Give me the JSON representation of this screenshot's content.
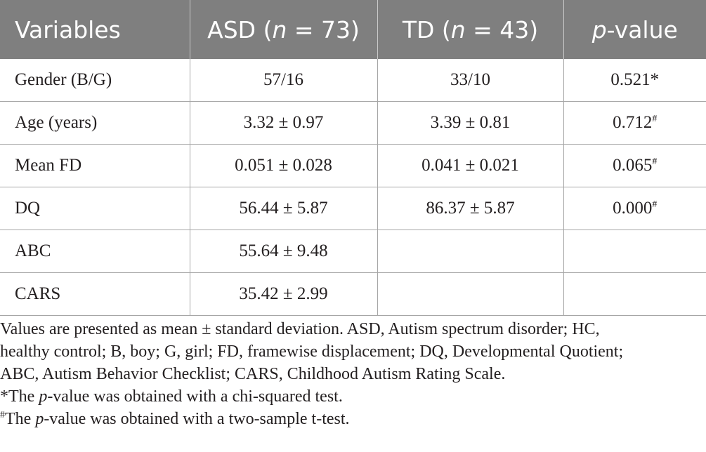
{
  "table": {
    "headers": [
      {
        "text": "Variables"
      },
      {
        "pre": "ASD (",
        "italic": "n",
        "post": " = 73)"
      },
      {
        "pre": "TD (",
        "italic": "n",
        "post": " = 43)"
      },
      {
        "pre": "",
        "italic": "p",
        "post": "-value"
      }
    ],
    "rows": [
      {
        "variable": "Gender (B/G)",
        "asd": "57/16",
        "td": "33/10",
        "p": "0.521",
        "mark": "*"
      },
      {
        "variable": "Age (years)",
        "asd": "3.32 ± 0.97",
        "td": "3.39 ± 0.81",
        "p": "0.712",
        "mark": "#"
      },
      {
        "variable": "Mean FD",
        "asd": "0.051 ± 0.028",
        "td": "0.041 ± 0.021",
        "p": "0.065",
        "mark": "#"
      },
      {
        "variable": "DQ",
        "asd": "56.44 ± 5.87",
        "td": "86.37 ± 5.87",
        "p": "0.000",
        "mark": "#"
      },
      {
        "variable": "ABC",
        "asd": "55.64 ± 9.48",
        "td": "",
        "p": "",
        "mark": ""
      },
      {
        "variable": "CARS",
        "asd": "35.42 ± 2.99",
        "td": "",
        "p": "",
        "mark": ""
      }
    ]
  },
  "notes": {
    "abbreviations_line1": "Values are presented as mean ± standard deviation. ASD, Autism spectrum disorder; HC,",
    "abbreviations_line2": "healthy control; B, boy; G, girl; FD, framewise displacement; DQ, Developmental Quotient;",
    "abbreviations_line3": "ABC, Autism Behavior Checklist; CARS, Childhood Autism Rating Scale.",
    "footnote_star": {
      "mark": "*",
      "pre": "The ",
      "italic": "p",
      "post": "-value was obtained with a chi-squared test."
    },
    "footnote_hash": {
      "mark": "#",
      "pre": "The ",
      "italic": "p",
      "post": "-value was obtained with a two-sample t-test."
    }
  }
}
